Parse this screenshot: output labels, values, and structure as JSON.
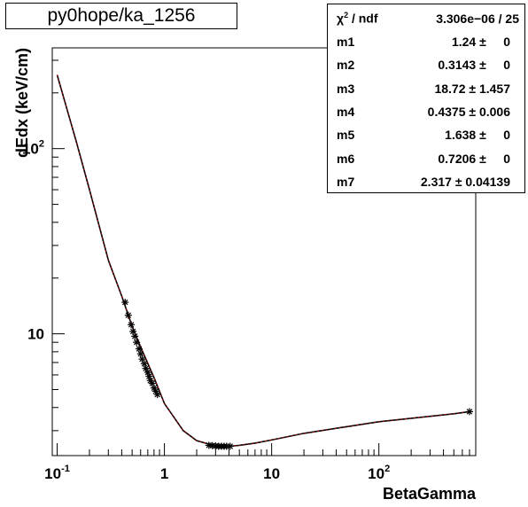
{
  "title": "py0hope/ka_1256",
  "chart_data": {
    "type": "scatter",
    "xlabel": "BetaGamma",
    "ylabel": "dEdx (keV/cm)",
    "xscale": "log",
    "yscale": "log",
    "xlim": [
      0.09,
      800
    ],
    "ylim": [
      2.2,
      350
    ],
    "grid": false,
    "legend": "none",
    "x_tick_labels": [
      "10-1",
      "1",
      "10",
      "102"
    ],
    "y_tick_labels": [
      "10",
      "102"
    ],
    "series": [
      {
        "type": "points",
        "marker": "asterisk",
        "x": [
          0.43,
          0.46,
          0.49,
          0.51,
          0.53,
          0.55,
          0.58,
          0.6,
          0.62,
          0.65,
          0.67,
          0.7,
          0.72,
          0.74,
          0.77,
          0.8,
          0.83,
          0.86,
          2.6,
          2.8,
          3.0,
          3.2,
          3.4,
          3.6,
          3.8,
          4.1,
          700
        ],
        "y": [
          14.8,
          12.6,
          11.2,
          10.3,
          9.7,
          9.0,
          8.3,
          7.8,
          7.3,
          6.9,
          6.5,
          6.2,
          5.9,
          5.6,
          5.4,
          5.1,
          4.9,
          4.7,
          2.5,
          2.49,
          2.48,
          2.47,
          2.47,
          2.47,
          2.47,
          2.47,
          3.8
        ]
      },
      {
        "type": "fit",
        "color": "#cc0000",
        "x": [
          0.1,
          0.15,
          0.2,
          0.3,
          0.4,
          0.5,
          0.6,
          0.8,
          1.0,
          1.5,
          2.0,
          3.0,
          4.0,
          5.0,
          7.0,
          10,
          20,
          50,
          100,
          200,
          500,
          700
        ],
        "y": [
          250,
          110,
          60,
          25,
          16,
          11,
          8.5,
          5.8,
          4.2,
          3.0,
          2.65,
          2.48,
          2.47,
          2.5,
          2.57,
          2.67,
          2.9,
          3.15,
          3.35,
          3.5,
          3.7,
          3.8
        ]
      }
    ]
  },
  "stats": {
    "chi2_label": "χ",
    "chi2_sup": "2",
    "chi2_rest": " / ndf",
    "chi2_value": "3.306e−06 / 25",
    "rows": [
      {
        "name": "m1",
        "value": "1.24 ±     0"
      },
      {
        "name": "m2",
        "value": "0.3143 ±     0"
      },
      {
        "name": "m3",
        "value": "18.72 ± 1.457"
      },
      {
        "name": "m4",
        "value": "0.4375 ± 0.006"
      },
      {
        "name": "m5",
        "value": "1.638 ±     0"
      },
      {
        "name": "m6",
        "value": "0.7206 ±     0"
      },
      {
        "name": "m7",
        "value": "2.317 ± 0.04139"
      }
    ]
  }
}
